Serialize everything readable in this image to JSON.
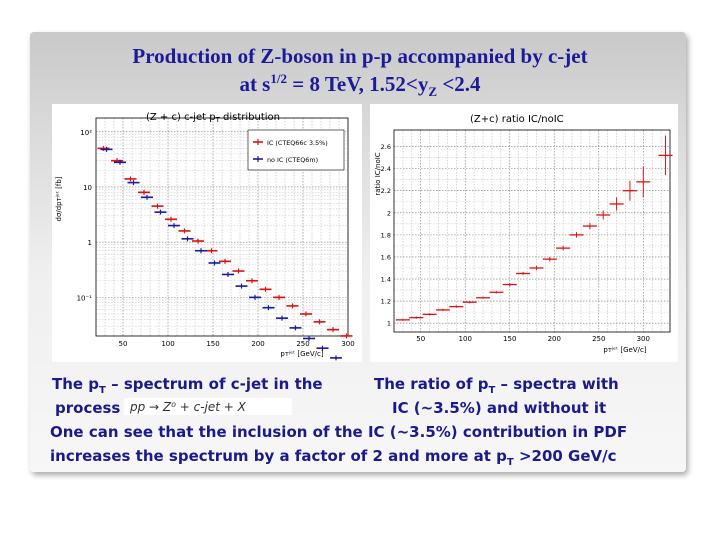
{
  "slide": {
    "title_line1": "Production of Z-boson in p-p  accompanied by c-jet",
    "title_line2_pre": "at s",
    "title_line2_sup": "1/2",
    "title_line2_mid": " = 8 TeV,  1.52<y",
    "title_line2_sub": "Z",
    "title_line2_post": " <2.4",
    "left_caption_pre": "The p",
    "left_caption_sub": "T",
    "left_caption_post": " – spectrum  of c-jet in the",
    "left_caption_line2": "process",
    "right_caption_pre": "The ratio of  p",
    "right_caption_sub": "T",
    "right_caption_post": " – spectra with",
    "right_caption_line2": "IC (~3.5%) and without it",
    "conclusion_line1": "One can see that the inclusion of the  IC (~3.5%) contribution in PDF",
    "conclusion_line2_pre": "increases the spectrum by a factor of 2 and more at p",
    "conclusion_line2_sub": "T",
    "conclusion_line2_post": " >200 GeV/c",
    "formula_text": "pp → Z⁰ + c-jet + X"
  },
  "chart_data": [
    {
      "type": "scatter",
      "title": "(Z + c) c-jet p",
      "title_sub": "T",
      "title_post": " distribution",
      "ylabel": "dσ/dpᴛʲᵉᵗ [fb]",
      "xlabel": "pᴛʲᵉᵗ [GeV/c]",
      "xlim": [
        20,
        300
      ],
      "ylim_log10": [
        -1.7,
        2.25
      ],
      "log_y": true,
      "grid": true,
      "x_ticks": [
        "50",
        "100",
        "150",
        "200",
        "250",
        "300"
      ],
      "y_ticks": [
        "10²",
        "10",
        "1",
        "10⁻¹"
      ],
      "legend_position": "top-right",
      "series": [
        {
          "name": "IC (CTEQ66c 3.5%)",
          "color": "#dd1111",
          "x": [
            30,
            45,
            60,
            75,
            90,
            105,
            120,
            135,
            150,
            165,
            180,
            195,
            210,
            225,
            240,
            255,
            270,
            285,
            300
          ],
          "y": [
            50,
            30,
            14,
            8,
            4.5,
            2.6,
            1.6,
            1.05,
            0.7,
            0.45,
            0.3,
            0.2,
            0.14,
            0.1,
            0.07,
            0.05,
            0.036,
            0.026,
            0.02
          ]
        },
        {
          "name": "no IC (CTEQ6m)",
          "color": "#1a1a9a",
          "x": [
            30,
            45,
            60,
            75,
            90,
            105,
            120,
            135,
            150,
            165,
            180,
            195,
            210,
            225,
            240,
            255,
            270,
            285
          ],
          "y": [
            48,
            28,
            12,
            6.5,
            3.5,
            2.0,
            1.15,
            0.7,
            0.42,
            0.26,
            0.16,
            0.1,
            0.065,
            0.042,
            0.028,
            0.018,
            0.012,
            0.008
          ]
        }
      ]
    },
    {
      "type": "scatter",
      "title": "(Z+c) ratio IC/noIC",
      "ylabel": "ratio IC/noIC",
      "xlabel": "pᴛʲᵉᵗ [GeV/c]",
      "xlim": [
        20,
        330
      ],
      "ylim": [
        0.92,
        2.75
      ],
      "grid": true,
      "x_ticks": [
        "50",
        "100",
        "150",
        "200",
        "250",
        "300"
      ],
      "y_ticks": [
        "1",
        "1.2",
        "1.4",
        "1.6",
        "1.8",
        "2",
        "2.2",
        "2.4",
        "2.6"
      ],
      "series": [
        {
          "name": "",
          "color": "#dd1111",
          "x": [
            30,
            45,
            60,
            75,
            90,
            105,
            120,
            135,
            150,
            165,
            180,
            195,
            210,
            225,
            240,
            255,
            270,
            285,
            300,
            325
          ],
          "y": [
            1.03,
            1.05,
            1.08,
            1.12,
            1.15,
            1.19,
            1.23,
            1.28,
            1.35,
            1.45,
            1.5,
            1.58,
            1.68,
            1.8,
            1.88,
            1.98,
            2.08,
            2.2,
            2.28,
            2.52
          ],
          "err": [
            0.01,
            0.01,
            0.01,
            0.01,
            0.01,
            0.01,
            0.01,
            0.01,
            0.015,
            0.015,
            0.02,
            0.02,
            0.02,
            0.025,
            0.03,
            0.04,
            0.06,
            0.09,
            0.14,
            0.18
          ]
        }
      ]
    }
  ]
}
